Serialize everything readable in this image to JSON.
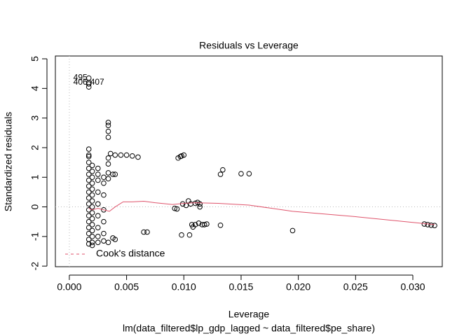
{
  "chart_data": {
    "type": "scatter",
    "title": "Residuals vs Leverage",
    "xlabel": "Leverage",
    "ylabel": "Standardized residuals",
    "subtitle": "lm(data_filtered$lp_gdp_lagged ~ data_filtered$pe_share)",
    "xlim": [
      -0.00122,
      0.03257
    ],
    "ylim": [
      -2.02,
      5.095
    ],
    "xticks": [
      {
        "value": 0,
        "label": "0.000"
      },
      0.005,
      {
        "value": 0.01,
        "label": "0.010"
      },
      0.015,
      {
        "value": 0.02,
        "label": "0.020"
      },
      0.025,
      {
        "value": 0.03,
        "label": "0.030"
      }
    ],
    "yticks": [
      -2,
      -1,
      0,
      1,
      2,
      3,
      4,
      5
    ],
    "reference_lines": {
      "x": 0,
      "y": 0,
      "color": "#bbbbbb"
    },
    "point_color": "#000000",
    "x": [
      0.0017,
      0.0017,
      0.0017,
      0.0017,
      0.0017,
      0.0017,
      0.0017,
      0.0017,
      0.0017,
      0.0017,
      0.0017,
      0.0017,
      0.0017,
      0.0017,
      0.0017,
      0.0017,
      0.0017,
      0.0017,
      0.0017,
      0.0017,
      0.0017,
      0.0017,
      0.002,
      0.002,
      0.002,
      0.002,
      0.002,
      0.002,
      0.002,
      0.002,
      0.002,
      0.002,
      0.002,
      0.002,
      0.002,
      0.002,
      0.002,
      0.0025,
      0.0025,
      0.0025,
      0.0025,
      0.0025,
      0.0025,
      0.0025,
      0.0025,
      0.0025,
      0.003,
      0.003,
      0.003,
      0.003,
      0.003,
      0.003,
      0.003,
      0.0034,
      0.0034,
      0.0034,
      0.0034,
      0.0034,
      0.0034,
      0.0034,
      0.0034,
      0.0034,
      0.0036,
      0.0038,
      0.0038,
      0.004,
      0.004,
      0.004,
      0.0045,
      0.005,
      0.0055,
      0.006,
      0.0065,
      0.0068,
      0.0092,
      0.0094,
      0.0095,
      0.0097,
      0.0098,
      0.0098,
      0.0099,
      0.01,
      0.0102,
      0.0104,
      0.0105,
      0.0106,
      0.0107,
      0.0108,
      0.011,
      0.011,
      0.0112,
      0.0113,
      0.0114,
      0.0114,
      0.0116,
      0.0118,
      0.012,
      0.0132,
      0.0132,
      0.0134,
      0.015,
      0.0157,
      0.0195,
      0.031,
      0.0313,
      0.0316,
      0.0319
    ],
    "y": [
      4.35,
      4.2,
      4.15,
      4.05,
      1.95,
      1.75,
      1.7,
      1.5,
      1.3,
      1.1,
      0.9,
      0.7,
      0.5,
      0.3,
      0.1,
      -0.1,
      -0.3,
      -0.5,
      -0.7,
      -0.9,
      -1.1,
      -1.25,
      1.4,
      1.2,
      1.0,
      0.8,
      0.6,
      0.4,
      0.2,
      0,
      -0.2,
      -0.4,
      -0.6,
      -0.8,
      -1.0,
      -1.2,
      -1.3,
      1.3,
      1.1,
      0.9,
      0.5,
      0.1,
      -0.3,
      -0.7,
      -1.0,
      -1.2,
      1.0,
      0.8,
      0.4,
      -0.1,
      -0.5,
      -0.9,
      -1.15,
      2.85,
      2.75,
      2.55,
      2.35,
      1.65,
      1.45,
      1.15,
      0.95,
      -1.2,
      1.8,
      1.1,
      -1.05,
      1.75,
      1.1,
      -1.1,
      1.75,
      1.75,
      1.72,
      1.68,
      -0.85,
      -0.85,
      -0.05,
      -0.07,
      1.65,
      1.7,
      -0.95,
      1.72,
      0.1,
      1.75,
      0.05,
      0.2,
      -0.95,
      0.1,
      -0.6,
      -0.68,
      0.12,
      -0.6,
      0.15,
      -0.55,
      0.1,
      0.0,
      -0.6,
      -0.6,
      -0.58,
      -0.62,
      1.1,
      1.25,
      1.12,
      1.12,
      -0.8,
      -0.58,
      -0.6,
      -0.62,
      -0.63
    ],
    "point_labels": [
      {
        "label": "495",
        "x": 0.0017,
        "y": 4.35,
        "position": "left"
      },
      {
        "label": "406",
        "x": 0.0017,
        "y": 4.2,
        "position": "left"
      },
      {
        "label": "407",
        "x": 0.0017,
        "y": 4.2,
        "position": "right"
      }
    ],
    "smooth": {
      "color": "#DF536B",
      "x": [
        0.0017,
        0.002,
        0.0025,
        0.003,
        0.0035,
        0.004,
        0.0047,
        0.0055,
        0.0065,
        0.0075,
        0.009,
        0.01,
        0.011,
        0.013,
        0.0157,
        0.0195,
        0.025,
        0.0319
      ],
      "y": [
        -0.05,
        -0.1,
        -0.05,
        -0.1,
        -0.15,
        0,
        0.17,
        0.17,
        0.19,
        0.14,
        0.08,
        0.12,
        0.14,
        0.12,
        0.06,
        -0.15,
        -0.33,
        -0.6
      ]
    },
    "legend": {
      "label": "Cook's distance",
      "color": "#DF536B",
      "dashed": true,
      "position": "bottomleft"
    }
  }
}
